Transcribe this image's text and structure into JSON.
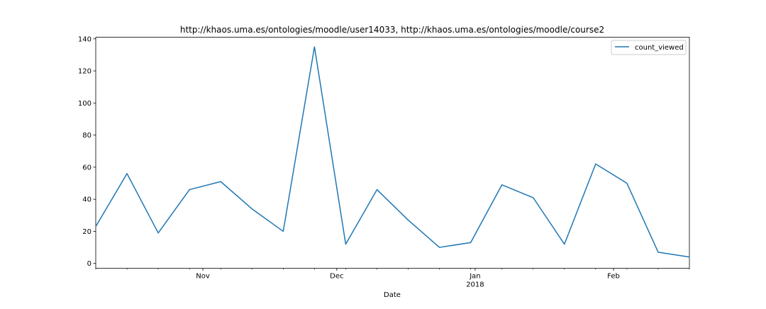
{
  "chart_data": {
    "type": "line",
    "title": "http://khaos.uma.es/ontologies/moodle/user14033, http://khaos.uma.es/ontologies/moodle/course2",
    "xlabel": "Date",
    "ylabel": "",
    "x": [
      "2017-10-08",
      "2017-10-15",
      "2017-10-22",
      "2017-10-29",
      "2017-11-05",
      "2017-11-12",
      "2017-11-19",
      "2017-11-26",
      "2017-12-03",
      "2017-12-10",
      "2017-12-17",
      "2017-12-24",
      "2017-12-31",
      "2018-01-07",
      "2018-01-14",
      "2018-01-21",
      "2018-01-28",
      "2018-02-04",
      "2018-02-11",
      "2018-02-18"
    ],
    "series": [
      {
        "name": "count_viewed",
        "color": "#1f77b4",
        "values": [
          23,
          56,
          19,
          46,
          51,
          34,
          20,
          135,
          12,
          46,
          27,
          10,
          13,
          49,
          41,
          12,
          62,
          50,
          7,
          4
        ]
      }
    ],
    "xlim": [
      "2017-10-08",
      "2018-02-18"
    ],
    "ylim": [
      -3,
      141
    ],
    "yticks": [
      0,
      20,
      40,
      60,
      80,
      100,
      120,
      140
    ],
    "xticks_major": [
      {
        "date": "2017-11-01",
        "label": "Nov",
        "sublabel": ""
      },
      {
        "date": "2017-12-01",
        "label": "Dec",
        "sublabel": ""
      },
      {
        "date": "2018-01-01",
        "label": "Jan",
        "sublabel": "2018"
      },
      {
        "date": "2018-02-01",
        "label": "Feb",
        "sublabel": ""
      }
    ],
    "grid": false,
    "legend_position": "top-right"
  }
}
